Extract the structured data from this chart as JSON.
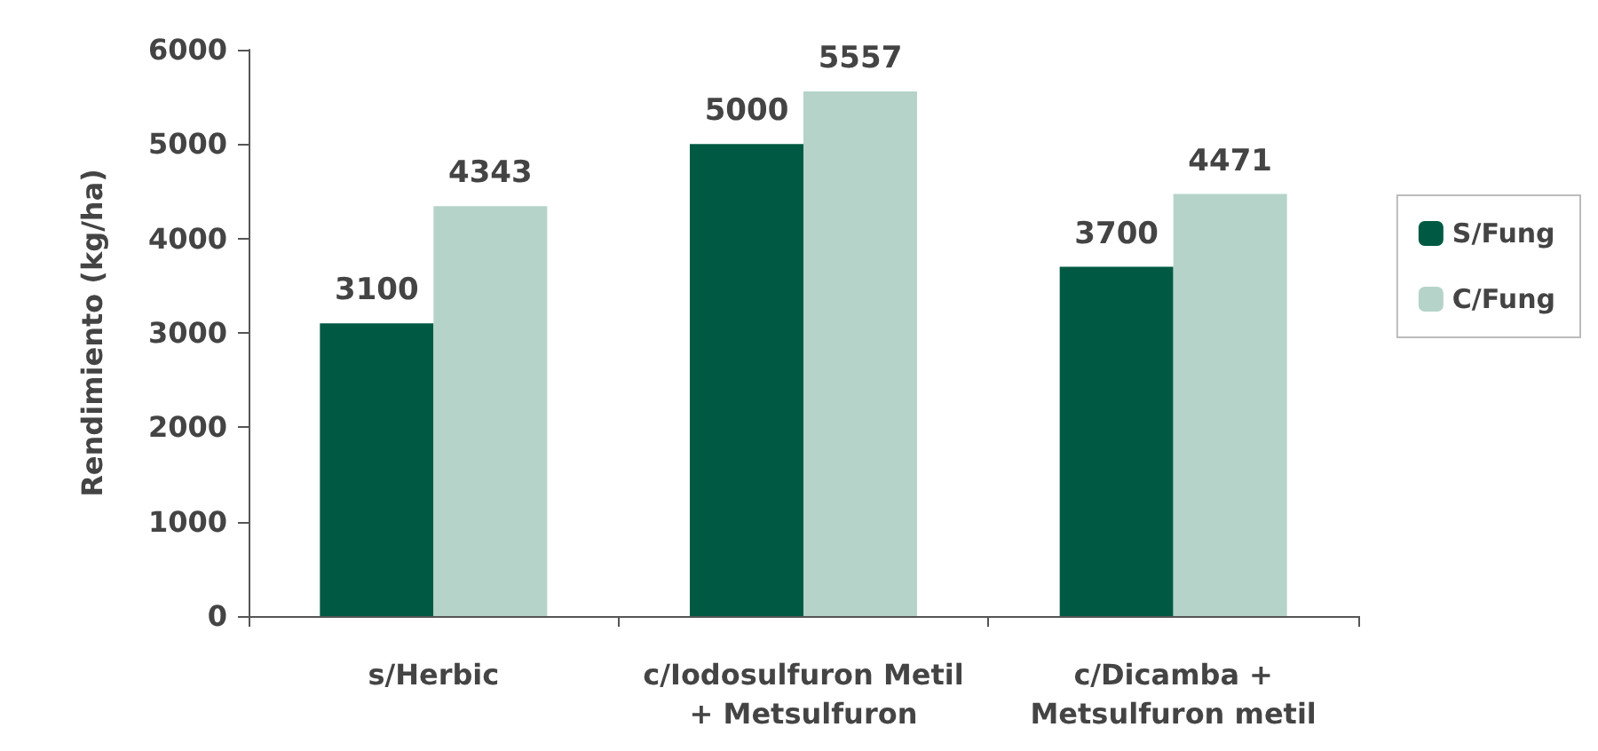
{
  "chart_data": {
    "type": "bar",
    "ylabel": "Rendimiento (kg/ha)",
    "categories": [
      "s/Herbic",
      "c/Iodosulfuron Metil\n+ Metsulfuron",
      "c/Dicamba +\nMetsulfuron metil"
    ],
    "series": [
      {
        "name": "S/Fung",
        "color": "#005a43",
        "values": [
          3100,
          5000,
          3700
        ]
      },
      {
        "name": "C/Fung",
        "color": "#b5d3c9",
        "values": [
          4343,
          5557,
          4471
        ]
      }
    ],
    "ylim": [
      0,
      6000
    ],
    "yticks": [
      0,
      1000,
      2000,
      3000,
      4000,
      5000,
      6000
    ],
    "grid": false,
    "legend": "right",
    "data_labels": true
  }
}
